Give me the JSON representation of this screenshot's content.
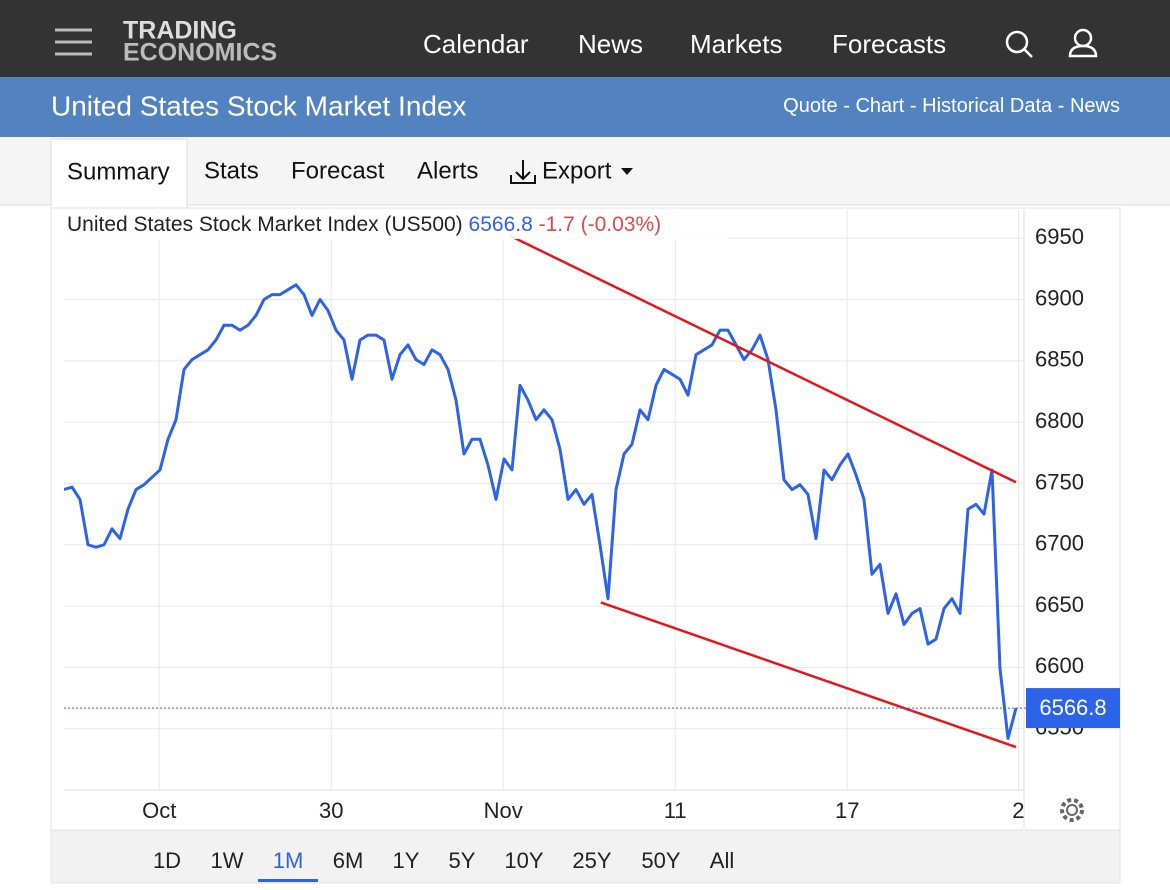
{
  "nav": {
    "logo_top": "TRADING",
    "logo_bottom": "ECONOMICS",
    "links": [
      "Calendar",
      "News",
      "Markets",
      "Forecasts"
    ]
  },
  "header": {
    "title": "United States Stock Market Index",
    "links": [
      "Quote",
      "Chart",
      "Historical Data",
      "News"
    ],
    "separator": "-"
  },
  "tabs": [
    "Summary",
    "Stats",
    "Forecast",
    "Alerts",
    "Export"
  ],
  "ranges": [
    "1D",
    "1W",
    "1M",
    "6M",
    "1Y",
    "5Y",
    "10Y",
    "25Y",
    "50Y",
    "All"
  ],
  "active_range": "1M",
  "chart_data": {
    "type": "line",
    "title": "United States Stock Market Index (US500)",
    "price_label": "6566.8",
    "change_label": "-1.7 (-0.03%)",
    "last_price": 6566.8,
    "series": [
      {
        "name": "US500",
        "color": "#2d63e8",
        "values": [
          6745,
          6747,
          6737,
          6700,
          6698,
          6700,
          6713,
          6705,
          6729,
          6745,
          6749,
          6755,
          6761,
          6786,
          6802,
          6843,
          6851,
          6855,
          6859,
          6867,
          6879,
          6879,
          6875,
          6879,
          6887,
          6900,
          6904,
          6904,
          6908,
          6912,
          6904,
          6887,
          6900,
          6891,
          6875,
          6867,
          6835,
          6867,
          6871,
          6871,
          6867,
          6835,
          6855,
          6863,
          6851,
          6847,
          6859,
          6855,
          6843,
          6818,
          6774,
          6786,
          6786,
          6765,
          6737,
          6770,
          6761,
          6830,
          6818,
          6802,
          6810,
          6802,
          6778,
          6737,
          6745,
          6733,
          6741,
          6700,
          6656,
          6745,
          6774,
          6782,
          6810,
          6802,
          6830,
          6843,
          6839,
          6835,
          6822,
          6855,
          6859,
          6863,
          6875,
          6875,
          6863,
          6851,
          6859,
          6871,
          6851,
          6810,
          6753,
          6745,
          6749,
          6741,
          6705,
          6761,
          6753,
          6765,
          6774,
          6757,
          6737,
          6676,
          6684,
          6644,
          6660,
          6635,
          6644,
          6648,
          6619,
          6623,
          6648,
          6656,
          6644,
          6729,
          6733,
          6725,
          6761,
          6599,
          6542,
          6566.8
        ]
      }
    ],
    "trend_lines": [
      {
        "color": "#e8141c",
        "x": [
          55.75,
          119
        ],
        "values": [
          6952,
          6751
        ]
      },
      {
        "color": "#e8141c",
        "x": [
          67.1,
          119
        ],
        "values": [
          6653,
          6535
        ]
      }
    ],
    "xlim": [
      0,
      119
    ],
    "xticks": [
      {
        "value": 11.9,
        "label": "Oct"
      },
      {
        "value": 33.4,
        "label": "30"
      },
      {
        "value": 54.9,
        "label": "Nov"
      },
      {
        "value": 76.4,
        "label": "11"
      },
      {
        "value": 97.9,
        "label": "17"
      },
      {
        "value": 119.3,
        "label": "2"
      }
    ],
    "ylim": [
      6500,
      6973
    ],
    "yticks": [
      6550,
      6600,
      6650,
      6700,
      6750,
      6800,
      6850,
      6900,
      6950
    ],
    "grid": true
  }
}
